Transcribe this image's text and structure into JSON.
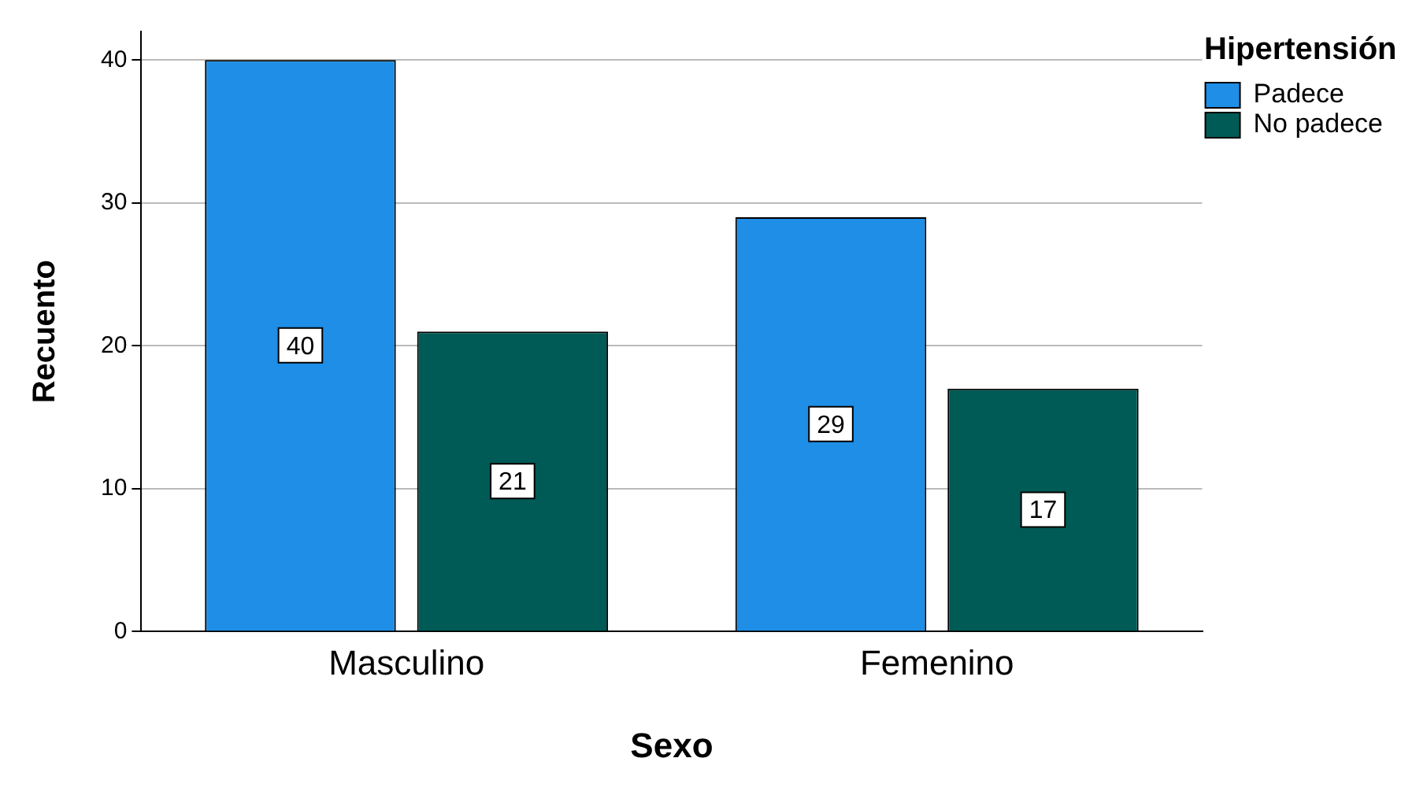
{
  "chart_data": {
    "type": "bar",
    "xlabel": "Sexo",
    "ylabel": "Recuento",
    "legend_title": "Hipertensión",
    "categories": [
      "Masculino",
      "Femenino"
    ],
    "series": [
      {
        "name": "Padece",
        "color": "#1e8ee6",
        "values": [
          40,
          29
        ]
      },
      {
        "name": "No padece",
        "color": "#005a55",
        "values": [
          21,
          17
        ]
      }
    ],
    "ylim": [
      0,
      42
    ],
    "yticks": [
      0,
      10,
      20,
      30,
      40
    ],
    "grid": "y",
    "legend": "top right",
    "data_labels": true
  }
}
